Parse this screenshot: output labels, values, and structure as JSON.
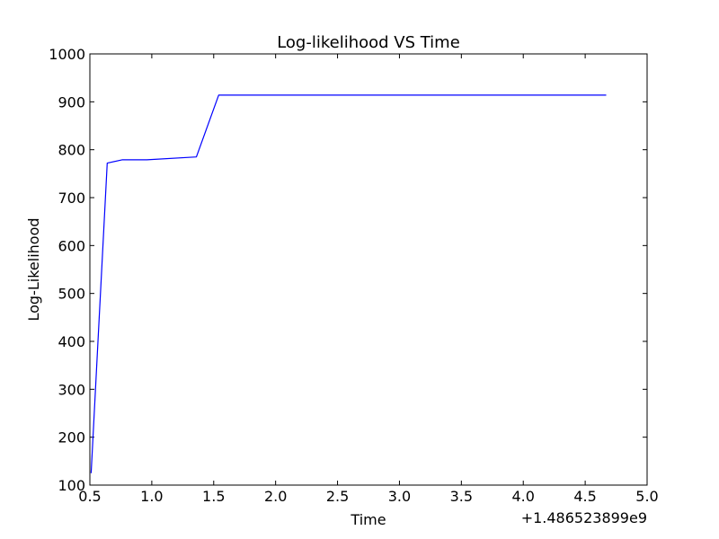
{
  "chart_data": {
    "type": "line",
    "title": "Log-likelihood VS Time",
    "xlabel": "Time",
    "ylabel": "Log-Likelihood",
    "x_offset_label": "+1.486523899e9",
    "xlim": [
      0.5,
      5.0
    ],
    "ylim": [
      100,
      1000
    ],
    "xticks": [
      0.5,
      1.0,
      1.5,
      2.0,
      2.5,
      3.0,
      3.5,
      4.0,
      4.5,
      5.0
    ],
    "xtick_labels": [
      "0.5",
      "1.0",
      "1.5",
      "2.0",
      "2.5",
      "3.0",
      "3.5",
      "4.0",
      "4.5",
      "5.0"
    ],
    "yticks": [
      100,
      200,
      300,
      400,
      500,
      600,
      700,
      800,
      900,
      1000
    ],
    "ytick_labels": [
      "100",
      "200",
      "300",
      "400",
      "500",
      "600",
      "700",
      "800",
      "900",
      "1000"
    ],
    "grid": false,
    "series": [
      {
        "color": "#0000ff",
        "x": [
          0.51,
          0.64,
          0.76,
          0.96,
          1.36,
          1.54,
          4.67
        ],
        "y": [
          125,
          772,
          779,
          779,
          785,
          914,
          914
        ]
      }
    ]
  }
}
